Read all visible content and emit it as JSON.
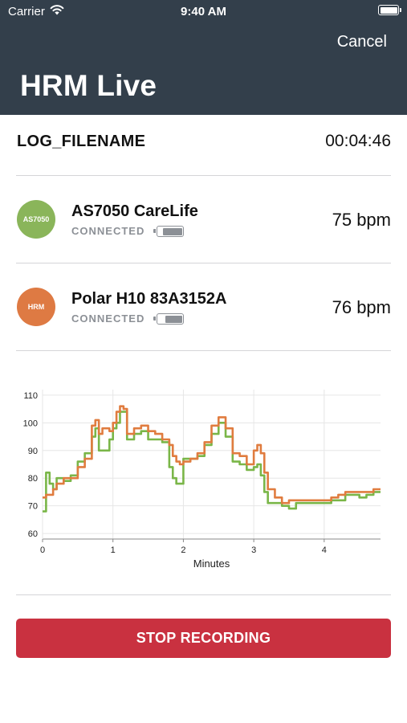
{
  "status_bar": {
    "carrier": "Carrier",
    "time": "9:40 AM"
  },
  "nav": {
    "cancel_label": "Cancel",
    "title": "HRM Live"
  },
  "log": {
    "filename": "LOG_FILENAME",
    "elapsed": "00:04:46"
  },
  "devices": [
    {
      "badge": "AS7050",
      "badge_color": "#8ab55a",
      "name": "AS7050 CareLife",
      "status": "CONNECTED",
      "battery_level": 0.85,
      "bpm": "75 bpm"
    },
    {
      "badge": "HRM",
      "badge_color": "#de7a43",
      "name": "Polar H10 83A3152A",
      "status": "CONNECTED",
      "battery_level": 0.75,
      "bpm": "76 bpm"
    }
  ],
  "chart_data": {
    "type": "line",
    "xlabel": "Minutes",
    "xlim": [
      0,
      4.8
    ],
    "ylim": [
      58,
      112
    ],
    "xticks": [
      "0",
      "1",
      "2",
      "3",
      "4"
    ],
    "yticks": [
      "60",
      "70",
      "80",
      "90",
      "100",
      "110"
    ],
    "grid": true,
    "legend": "none",
    "series": [
      {
        "color": "#7ab648",
        "x": [
          0,
          0.05,
          0.1,
          0.15,
          0.2,
          0.3,
          0.4,
          0.5,
          0.6,
          0.7,
          0.75,
          0.8,
          0.85,
          0.95,
          1.0,
          1.05,
          1.1,
          1.15,
          1.2,
          1.3,
          1.4,
          1.5,
          1.6,
          1.7,
          1.8,
          1.85,
          1.9,
          1.95,
          2.0,
          2.1,
          2.2,
          2.3,
          2.4,
          2.5,
          2.55,
          2.6,
          2.7,
          2.8,
          2.9,
          3.0,
          3.05,
          3.1,
          3.15,
          3.2,
          3.3,
          3.4,
          3.5,
          3.6,
          3.7,
          3.8,
          3.9,
          4.0,
          4.1,
          4.2,
          4.3,
          4.4,
          4.5,
          4.6,
          4.7,
          4.8
        ],
        "y": [
          68,
          82,
          78,
          76,
          80,
          79,
          81,
          86,
          89,
          95,
          98,
          90,
          90,
          94,
          98,
          100,
          104,
          104,
          94,
          96,
          97,
          94,
          94,
          93,
          84,
          80,
          78,
          78,
          87,
          87,
          88,
          92,
          96,
          100,
          100,
          95,
          86,
          85,
          83,
          84,
          85,
          81,
          75,
          71,
          71,
          70,
          69,
          71,
          71,
          71,
          71,
          71,
          72,
          72,
          74,
          74,
          73,
          74,
          75,
          75
        ]
      },
      {
        "color": "#e07c3f",
        "x": [
          0,
          0.05,
          0.1,
          0.15,
          0.2,
          0.3,
          0.4,
          0.5,
          0.6,
          0.7,
          0.75,
          0.8,
          0.85,
          0.95,
          1.0,
          1.05,
          1.1,
          1.15,
          1.2,
          1.3,
          1.4,
          1.5,
          1.6,
          1.7,
          1.8,
          1.85,
          1.9,
          1.95,
          2.0,
          2.1,
          2.2,
          2.3,
          2.4,
          2.5,
          2.55,
          2.6,
          2.7,
          2.8,
          2.9,
          3.0,
          3.05,
          3.1,
          3.15,
          3.2,
          3.3,
          3.4,
          3.5,
          3.6,
          3.7,
          3.8,
          3.9,
          4.0,
          4.1,
          4.2,
          4.3,
          4.4,
          4.5,
          4.6,
          4.7,
          4.8
        ],
        "y": [
          73,
          74,
          74,
          76,
          78,
          80,
          80,
          84,
          87,
          99,
          101,
          96,
          98,
          97,
          100,
          104,
          106,
          105,
          96,
          98,
          99,
          97,
          96,
          94,
          92,
          88,
          86,
          85,
          86,
          87,
          89,
          93,
          99,
          102,
          102,
          98,
          89,
          88,
          85,
          90,
          92,
          89,
          82,
          76,
          73,
          71,
          72,
          72,
          72,
          72,
          72,
          72,
          73,
          74,
          75,
          75,
          75,
          75,
          76,
          76
        ]
      }
    ]
  },
  "stop_button": {
    "label": "STOP RECORDING"
  }
}
